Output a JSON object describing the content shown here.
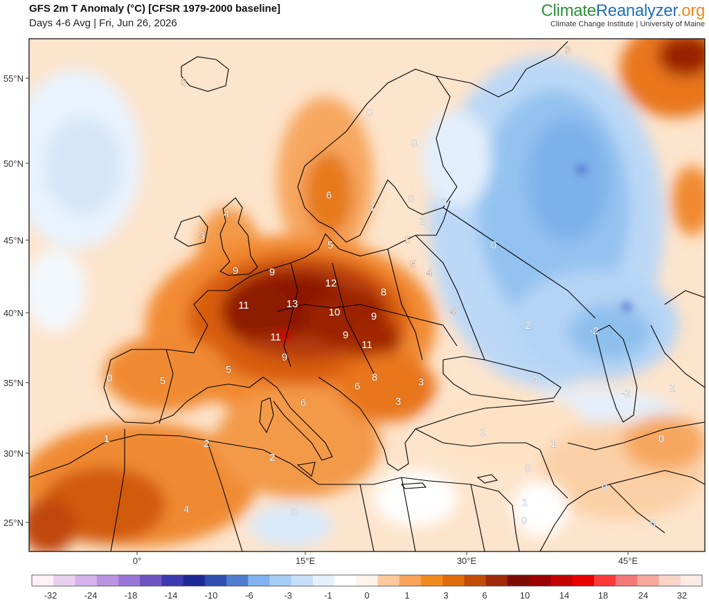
{
  "header": {
    "title": "GFS 2m T Anomaly (°C) [CFSR 1979-2000 baseline]",
    "subtitle": "Days 4-6 Avg | Fri, Jun 26, 2026"
  },
  "brand": {
    "name_part1": "Climate",
    "name_part2": "Reanalyzer",
    "name_part3": ".org",
    "tagline": "Climate Change Institute | University of Maine"
  },
  "axes": {
    "lat_labels": [
      "55°N",
      "50°N",
      "45°N",
      "40°N",
      "35°N",
      "30°N",
      "25°N"
    ],
    "lon_labels": [
      "0°",
      "15°E",
      "30°E",
      "45°E"
    ]
  },
  "colorbar": {
    "tick_labels": [
      "-32",
      "-24",
      "-18",
      "-14",
      "-10",
      "-6",
      "-3",
      "-1",
      "0",
      "1",
      "3",
      "6",
      "10",
      "14",
      "18",
      "24",
      "32"
    ],
    "colors": [
      "#fdf0f6",
      "#ead0f0",
      "#d5b2ea",
      "#bc93e0",
      "#9b75d6",
      "#6d55c2",
      "#3c3ab0",
      "#1e2896",
      "#2e4fb0",
      "#4f7ccc",
      "#80b3ee",
      "#a6cdf5",
      "#c6e0fa",
      "#e4f1fd",
      "#ffffff",
      "#fff4ec",
      "#fbc99b",
      "#f8a35a",
      "#f08a1c",
      "#e06d0c",
      "#c24d08",
      "#9e2b05",
      "#7e0c04",
      "#9c0000",
      "#c40000",
      "#e80000",
      "#ff3a3a",
      "#f47878",
      "#f6a89a",
      "#fad5c8",
      "#fdebe8"
    ]
  },
  "map_labels": [
    {
      "text": "6"
    },
    {
      "text": "3"
    },
    {
      "text": "0"
    },
    {
      "text": "0"
    },
    {
      "text": "4"
    },
    {
      "text": "3"
    },
    {
      "text": "6"
    },
    {
      "text": "3"
    },
    {
      "text": "0"
    },
    {
      "text": "0"
    },
    {
      "text": "2"
    },
    {
      "text": "5"
    },
    {
      "text": "9"
    },
    {
      "text": "9"
    },
    {
      "text": "5"
    },
    {
      "text": "0"
    },
    {
      "text": "5"
    },
    {
      "text": "4"
    },
    {
      "text": "12"
    },
    {
      "text": "8"
    },
    {
      "text": "11"
    },
    {
      "text": "13"
    },
    {
      "text": "10"
    },
    {
      "text": "9"
    },
    {
      "text": "4"
    },
    {
      "text": "-2"
    },
    {
      "text": "-2"
    },
    {
      "text": "11"
    },
    {
      "text": "9"
    },
    {
      "text": "11"
    },
    {
      "text": "9"
    },
    {
      "text": "5"
    },
    {
      "text": "8"
    },
    {
      "text": "6"
    },
    {
      "text": "0"
    },
    {
      "text": "5"
    },
    {
      "text": "3"
    },
    {
      "text": "0"
    },
    {
      "text": "3"
    },
    {
      "text": "6"
    },
    {
      "text": "-2"
    },
    {
      "text": "2"
    },
    {
      "text": "1"
    },
    {
      "text": "2"
    },
    {
      "text": "2"
    },
    {
      "text": "1"
    },
    {
      "text": "1"
    },
    {
      "text": "0"
    },
    {
      "text": "0"
    },
    {
      "text": "0"
    },
    {
      "text": "4"
    },
    {
      "text": "0"
    },
    {
      "text": "1"
    },
    {
      "text": "0"
    },
    {
      "text": "0"
    }
  ]
}
